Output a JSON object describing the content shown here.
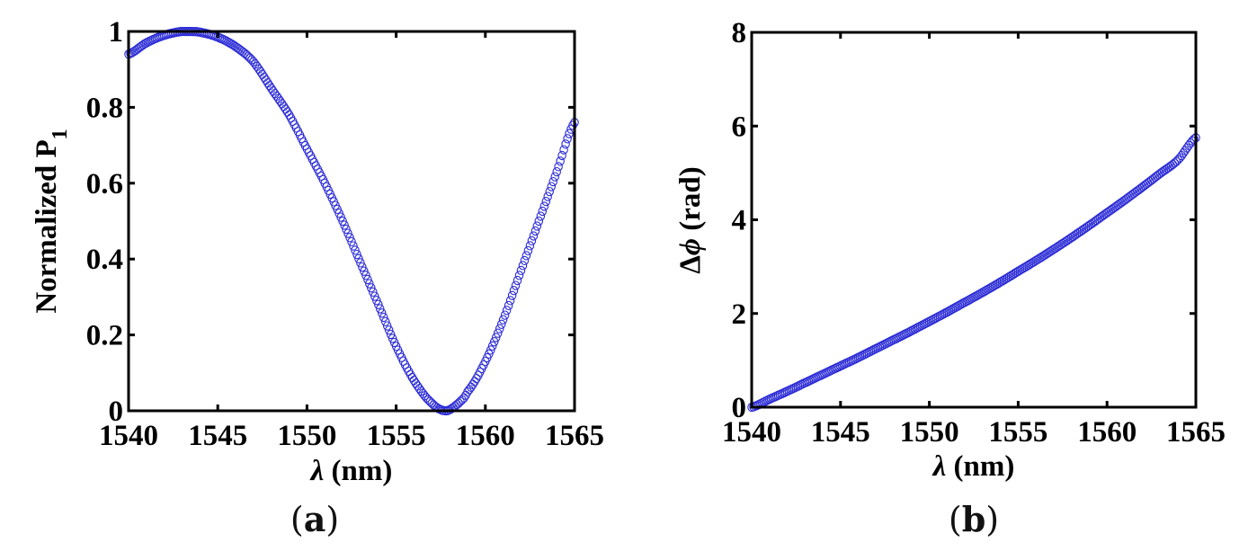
{
  "figure": {
    "panel_a": {
      "caption_open": "(",
      "caption_letter": "a",
      "caption_close": ")",
      "ylabel_main": "Normalized P",
      "ylabel_sub": "1",
      "xlabel_symbol": "λ",
      "xlabel_unit": "(nm)",
      "yticks": [
        "0",
        "0.2",
        "0.4",
        "0.6",
        "0.8",
        "1"
      ],
      "xticks": [
        "1540",
        "1545",
        "1550",
        "1555",
        "1560",
        "1565"
      ]
    },
    "panel_b": {
      "caption_open": "(",
      "caption_letter": "b",
      "caption_close": ")",
      "ylabel_delta": "Δ",
      "ylabel_symbol": "ϕ",
      "ylabel_unit": "(rad)",
      "xlabel_symbol": "λ",
      "xlabel_unit": "(nm)",
      "yticks": [
        "0",
        "2",
        "4",
        "6",
        "8"
      ],
      "xticks": [
        "1540",
        "1545",
        "1550",
        "1555",
        "1560",
        "1565"
      ]
    },
    "marker_color": "#2b2bd6"
  },
  "chart_data": [
    {
      "type": "scatter",
      "title": "(a)",
      "xlabel": "λ (nm)",
      "ylabel": "Normalized P1",
      "xlim": [
        1540,
        1565
      ],
      "ylim": [
        0,
        1
      ],
      "grid": false,
      "legend": null,
      "marker": "open circle",
      "color": "#2b2bd6",
      "x": [
        1540,
        1541,
        1542,
        1543,
        1543.3,
        1544,
        1545,
        1546,
        1547,
        1548,
        1549,
        1550,
        1551,
        1552,
        1553,
        1554,
        1555,
        1556,
        1557,
        1557.8,
        1558.5,
        1559,
        1560,
        1561,
        1562,
        1563,
        1564,
        1565
      ],
      "y": [
        0.94,
        0.97,
        0.99,
        1.0,
        1.0,
        0.998,
        0.985,
        0.96,
        0.92,
        0.85,
        0.78,
        0.69,
        0.6,
        0.5,
        0.39,
        0.28,
        0.17,
        0.08,
        0.02,
        0.0,
        0.02,
        0.05,
        0.13,
        0.24,
        0.37,
        0.5,
        0.63,
        0.76
      ]
    },
    {
      "type": "scatter",
      "title": "(b)",
      "xlabel": "λ (nm)",
      "ylabel": "Δϕ (rad)",
      "xlim": [
        1540,
        1565
      ],
      "ylim": [
        0,
        8
      ],
      "grid": false,
      "legend": null,
      "marker": "open circle",
      "color": "#2b2bd6",
      "x": [
        1540,
        1541,
        1542,
        1543,
        1544,
        1545,
        1546,
        1547,
        1548,
        1549,
        1550,
        1551,
        1552,
        1553,
        1554,
        1555,
        1556,
        1557,
        1558,
        1559,
        1560,
        1561,
        1562,
        1563,
        1564,
        1565
      ],
      "y": [
        0.0,
        0.17,
        0.34,
        0.52,
        0.7,
        0.88,
        1.06,
        1.25,
        1.44,
        1.63,
        1.83,
        2.03,
        2.24,
        2.45,
        2.67,
        2.9,
        3.13,
        3.37,
        3.62,
        3.88,
        4.15,
        4.42,
        4.7,
        4.99,
        5.28,
        5.75
      ]
    }
  ]
}
